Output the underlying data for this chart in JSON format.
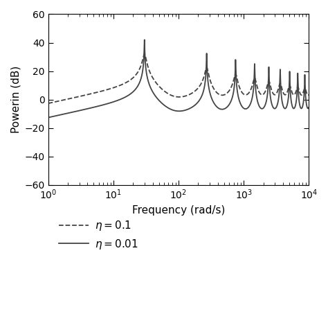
{
  "title": "",
  "xlabel": "Frequency (rad/s)",
  "ylabel": "Powerin (dB)",
  "xlim": [
    1,
    10000
  ],
  "ylim": [
    -60,
    60
  ],
  "yticks": [
    -60,
    -40,
    -20,
    0,
    20,
    40,
    60
  ],
  "eta1": 0.1,
  "eta2": 0.01,
  "legend_labels": [
    "$\\eta = 0.1$",
    "$\\eta = 0.01$"
  ],
  "line_color": "#444444",
  "background_color": "#ffffff",
  "omega1": 30.0,
  "N_modes": 40,
  "nfreqs": 8000,
  "ref_level_db": 0.0
}
